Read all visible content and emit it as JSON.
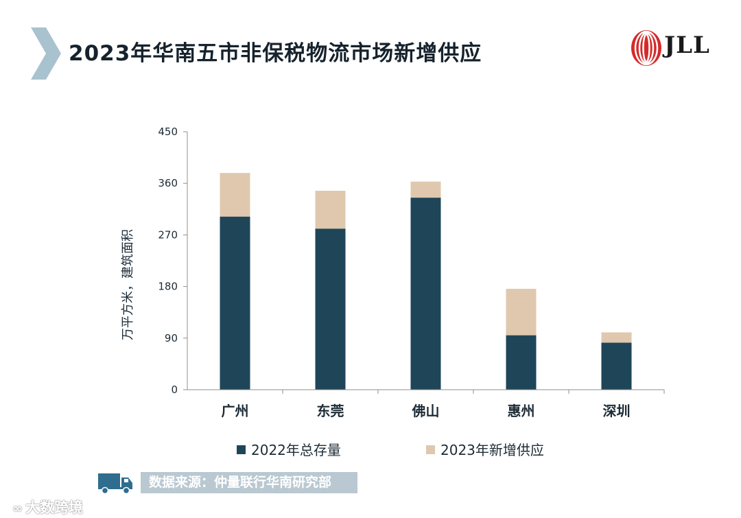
{
  "header": {
    "title": "2023年华南五市非保税物流市场新增供应",
    "logo_text": "JLL"
  },
  "colors": {
    "stock": "#1f4559",
    "new_supply": "#dfc8ae",
    "chevron": "#a9c2cf",
    "source_bar": "#b9c8d1"
  },
  "chart_data": {
    "type": "bar",
    "stacked": true,
    "categories": [
      "广州",
      "东莞",
      "佛山",
      "惠州",
      "深圳"
    ],
    "series": [
      {
        "name": "2022年总存量",
        "values": [
          302,
          281,
          335,
          95,
          82
        ]
      },
      {
        "name": "2023年新增供应",
        "values": [
          76,
          66,
          28,
          81,
          18
        ]
      }
    ],
    "ylabel": "万平方米，建筑面积",
    "ylim": [
      0,
      450
    ],
    "yticks": [
      0,
      90,
      180,
      270,
      360,
      450
    ],
    "grid": false,
    "legend": "bottom"
  },
  "footer": {
    "source": "数据来源：仲量联行华南研究部",
    "watermark": "大数跨境",
    "icons": [
      "truck-icon",
      "watermark-icon"
    ]
  }
}
